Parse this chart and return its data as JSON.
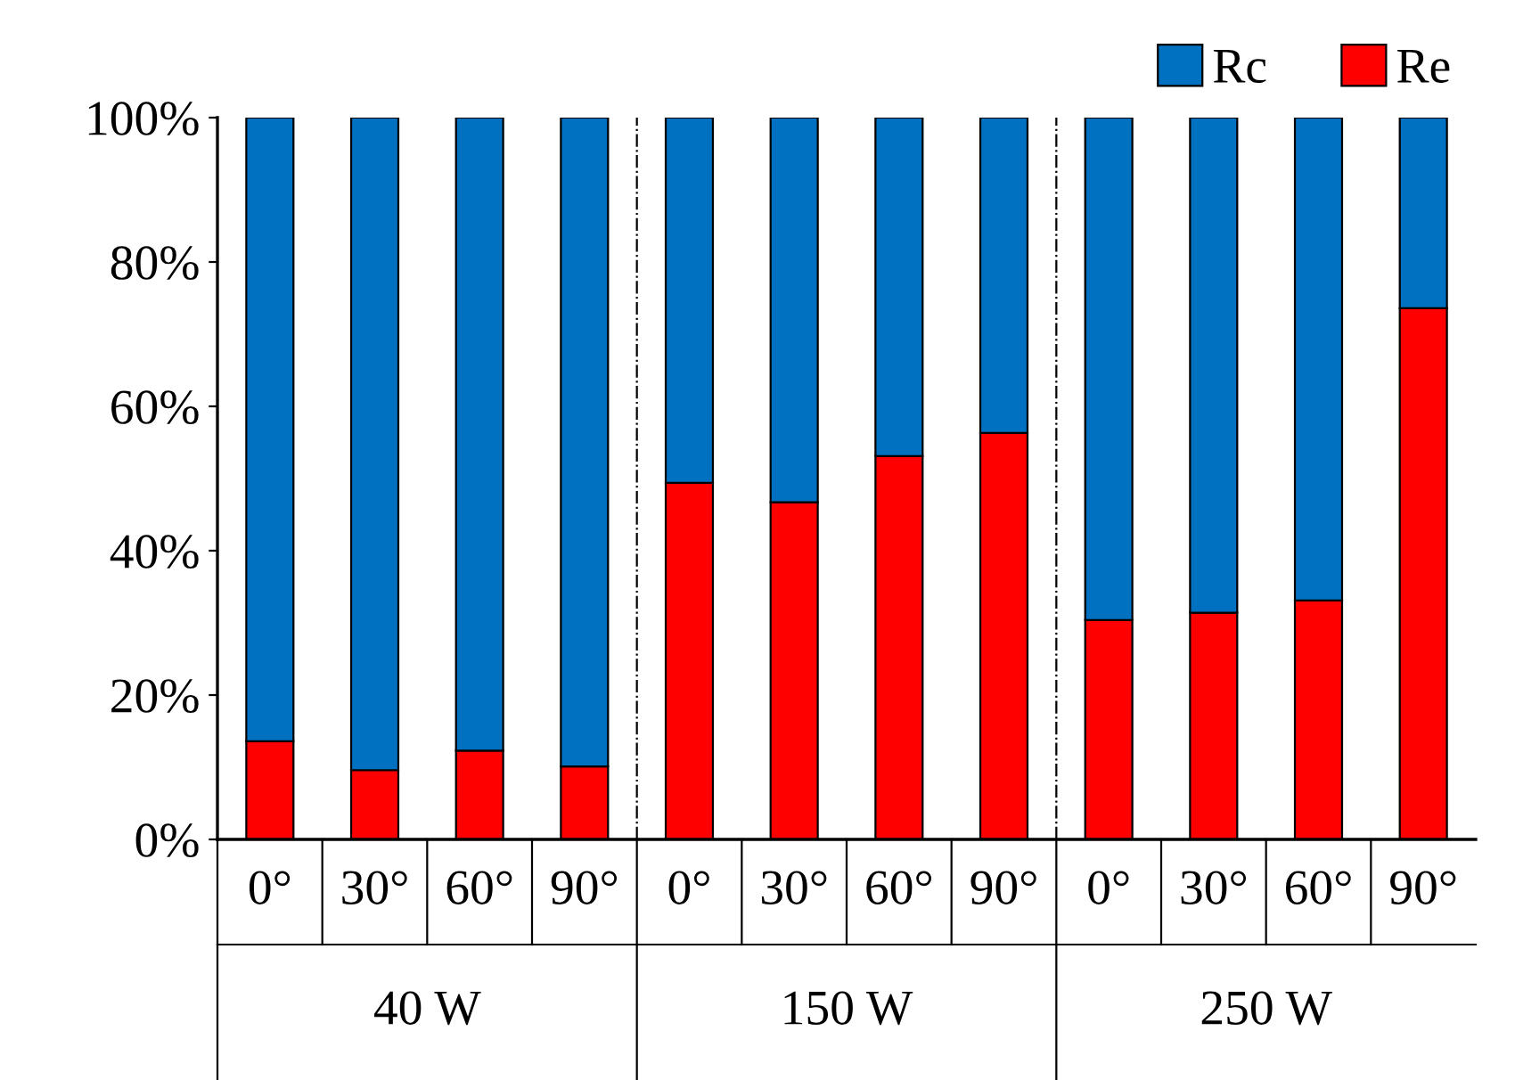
{
  "chart_data": {
    "type": "bar",
    "stacked": true,
    "categories": [
      "0°",
      "30°",
      "60°",
      "90°",
      "0°",
      "30°",
      "60°",
      "90°",
      "0°",
      "30°",
      "60°",
      "90°"
    ],
    "series": [
      {
        "name": "Re",
        "color": "#ff0000",
        "values": [
          13.6,
          9.6,
          12.3,
          10.1,
          49.4,
          46.7,
          53.1,
          56.3,
          30.4,
          31.4,
          33.1,
          73.6
        ]
      },
      {
        "name": "Rc",
        "color": "#0070c0",
        "values": [
          86.4,
          90.4,
          87.7,
          89.9,
          50.6,
          53.3,
          46.9,
          43.7,
          69.6,
          68.6,
          66.9,
          26.4
        ]
      }
    ],
    "annotations": [
      "40 W",
      "150 W",
      "250 W"
    ],
    "ylim": [
      0,
      100
    ],
    "yticks": [
      {
        "value": 0,
        "label": "0%"
      },
      {
        "value": 20,
        "label": "20%"
      },
      {
        "value": 40,
        "label": "40%"
      },
      {
        "value": 60,
        "label": "60%"
      },
      {
        "value": 80,
        "label": "80%"
      },
      {
        "value": 100,
        "label": "100%"
      }
    ],
    "legend": "top right",
    "grid": false
  }
}
